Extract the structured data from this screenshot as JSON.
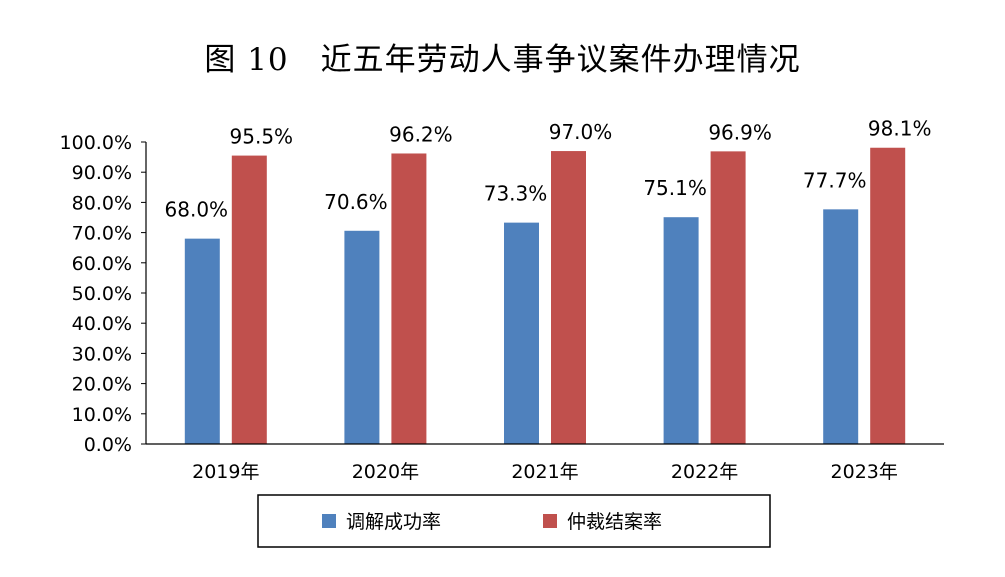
{
  "chart_data": {
    "type": "bar",
    "title": "图 10　近五年劳动人事争议案件办理情况",
    "categories": [
      "2019年",
      "2020年",
      "2021年",
      "2022年",
      "2023年"
    ],
    "series": [
      {
        "name": "调解成功率",
        "values": [
          68.0,
          70.6,
          73.3,
          75.1,
          77.7
        ],
        "color": "#4F81BD"
      },
      {
        "name": "仲裁结案率",
        "values": [
          95.5,
          96.2,
          97.0,
          96.9,
          98.1
        ],
        "color": "#C0504D"
      }
    ],
    "data_labels": [
      [
        "68.0%",
        "70.6%",
        "73.3%",
        "75.1%",
        "77.7%"
      ],
      [
        "95.5%",
        "96.2%",
        "97.0%",
        "96.9%",
        "98.1%"
      ]
    ],
    "ylim": [
      0,
      100
    ],
    "yticks": [
      "0.0%",
      "10.0%",
      "20.0%",
      "30.0%",
      "40.0%",
      "50.0%",
      "60.0%",
      "70.0%",
      "80.0%",
      "90.0%",
      "100.0%"
    ],
    "grid": false,
    "legend_position": "bottom"
  }
}
